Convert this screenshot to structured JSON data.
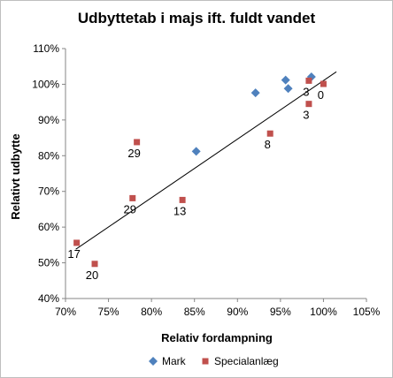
{
  "chart_data": {
    "type": "scatter",
    "title": "Udbyttetab i majs ift. fuldt vandet",
    "xlabel": "Relativ fordampning",
    "ylabel": "Relativt udbytte",
    "xlim": [
      0.7,
      1.05
    ],
    "ylim": [
      0.4,
      1.1
    ],
    "x_ticks": [
      0.7,
      0.75,
      0.8,
      0.85,
      0.9,
      0.95,
      1.0,
      1.05
    ],
    "x_tick_labels": [
      "70%",
      "75%",
      "80%",
      "85%",
      "90%",
      "95%",
      "100%",
      "105%"
    ],
    "y_ticks": [
      0.4,
      0.5,
      0.6,
      0.7,
      0.8,
      0.9,
      1.0,
      1.1
    ],
    "y_tick_labels": [
      "40%",
      "50%",
      "60%",
      "70%",
      "80%",
      "90%",
      "100%",
      "110%"
    ],
    "grid": "none",
    "legend_position": "bottom",
    "series": [
      {
        "name": "Mark",
        "marker": "diamond",
        "color": "#4f81bd",
        "points": [
          {
            "x": 0.852,
            "y": 0.812
          },
          {
            "x": 0.921,
            "y": 0.976
          },
          {
            "x": 0.956,
            "y": 1.012
          },
          {
            "x": 0.959,
            "y": 0.988
          },
          {
            "x": 0.986,
            "y": 1.021
          }
        ]
      },
      {
        "name": "Specialanlæg",
        "marker": "square",
        "color": "#c0504d",
        "points": [
          {
            "x": 0.713,
            "y": 0.556,
            "label": "17"
          },
          {
            "x": 0.734,
            "y": 0.497,
            "label": "20"
          },
          {
            "x": 0.778,
            "y": 0.681,
            "label": "29"
          },
          {
            "x": 0.783,
            "y": 0.838,
            "label": "29"
          },
          {
            "x": 0.836,
            "y": 0.676,
            "label": "13"
          },
          {
            "x": 0.938,
            "y": 0.862,
            "label": "8"
          },
          {
            "x": 0.983,
            "y": 1.01,
            "label": "3"
          },
          {
            "x": 0.983,
            "y": 0.945,
            "label": "3"
          },
          {
            "x": 1.0,
            "y": 1.001,
            "label": "0"
          }
        ]
      }
    ],
    "trendline": {
      "color": "#000000",
      "from": {
        "x": 0.712,
        "y": 0.538
      },
      "to": {
        "x": 1.015,
        "y": 1.035
      }
    }
  }
}
